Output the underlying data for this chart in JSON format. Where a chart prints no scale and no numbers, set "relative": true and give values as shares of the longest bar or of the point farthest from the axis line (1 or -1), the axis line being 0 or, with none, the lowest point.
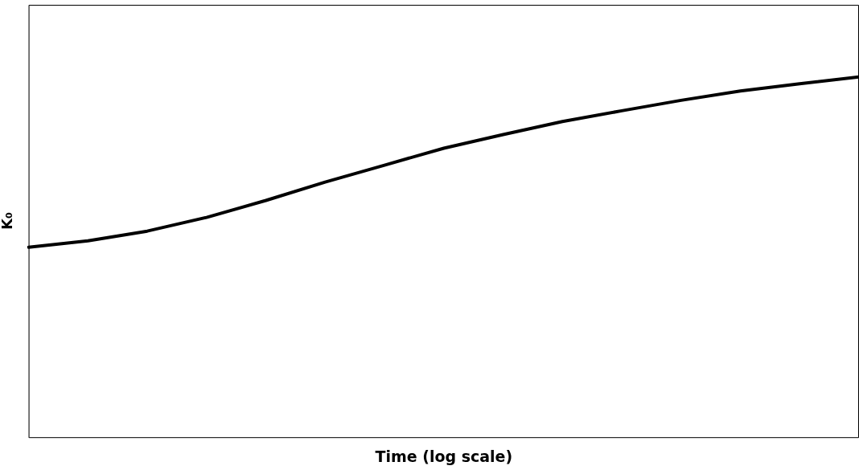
{
  "chart_data": {
    "type": "line",
    "relative": true,
    "xlabel": "Time (log scale)",
    "ylabel": "K₀",
    "categories": [
      null,
      null,
      null,
      null,
      null,
      null,
      null,
      null,
      null,
      null,
      null,
      null,
      null,
      null,
      null
    ],
    "series": [
      {
        "color": "#000000",
        "values": [
          0.527,
          0.545,
          0.572,
          0.61,
          0.657,
          0.708,
          0.755,
          0.802,
          0.84,
          0.876,
          0.906,
          0.935,
          0.961,
          0.981,
          1.0
        ]
      }
    ],
    "grid": false,
    "legend": false,
    "marker": "none",
    "line_style": "solid"
  }
}
